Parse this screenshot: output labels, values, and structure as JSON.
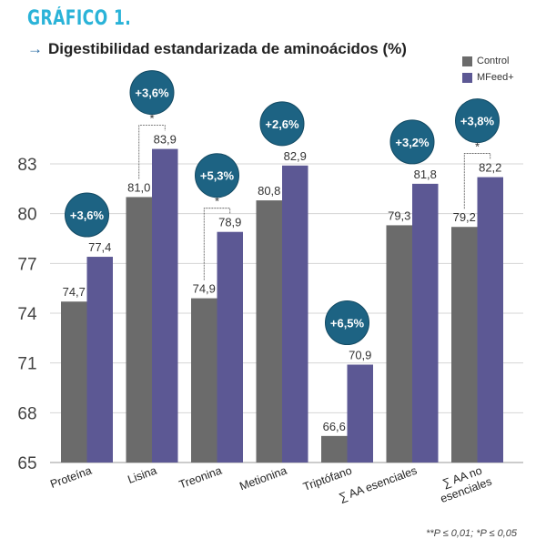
{
  "header": {
    "figure_title": "GRÁFICO 1.",
    "subtitle_arrow": "→",
    "subtitle": "Digestibilidad estandarizada de aminoácidos (%)"
  },
  "footnote": "**P ≤ 0,01; *P ≤ 0,05",
  "colors": {
    "control": "#6b6b6b",
    "mfeed": "#5c5894",
    "badge": "#1d6383",
    "title": "#2ab3d8"
  },
  "chart_data": {
    "type": "bar",
    "title": "Digestibilidad estandarizada de aminoácidos (%)",
    "categories": [
      "Proteína",
      "Lisina",
      "Treonina",
      "Metionina",
      "Triptófano",
      "∑ AA esenciales",
      "∑ AA no esenciales"
    ],
    "category_label_lines": [
      [
        "Proteína"
      ],
      [
        "Lisina"
      ],
      [
        "Treonina"
      ],
      [
        "Metionina"
      ],
      [
        "Triptófano"
      ],
      [
        "∑ AA esenciales"
      ],
      [
        "∑ AA no",
        "esenciales"
      ]
    ],
    "series": [
      {
        "name": "Control",
        "values": [
          74.7,
          81.0,
          74.9,
          80.8,
          66.6,
          79.3,
          79.2
        ],
        "labels": [
          "74,7",
          "81,0",
          "74,9",
          "80,8",
          "66,6",
          "79,3",
          "79,2"
        ]
      },
      {
        "name": "MFeed+",
        "values": [
          77.4,
          83.9,
          78.9,
          82.9,
          70.9,
          81.8,
          82.2
        ],
        "labels": [
          "77,4",
          "83,9",
          "78,9",
          "82,9",
          "70,9",
          "81,8",
          "82,2"
        ]
      }
    ],
    "improvements": [
      "+3,6%",
      "+3,6%",
      "+5,3%",
      "+2,6%",
      "+6,5%",
      "+3,2%",
      "+3,8%"
    ],
    "significance": [
      "",
      "*",
      "*",
      "",
      "",
      "",
      "*"
    ],
    "yticks": [
      65,
      68,
      71,
      74,
      77,
      80,
      83
    ],
    "ylim": [
      65,
      86
    ],
    "legend_position": "top-right"
  }
}
